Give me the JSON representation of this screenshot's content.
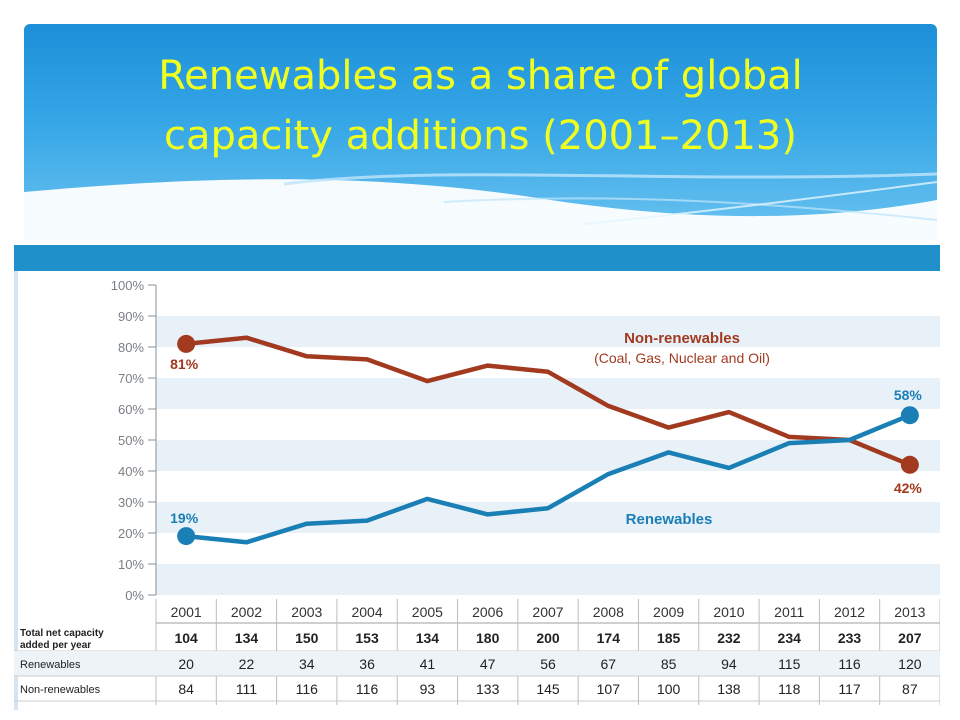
{
  "slide": {
    "title_line1": "Renewables as a share of global",
    "title_line2": "capacity additions (2001–2013)"
  },
  "colors": {
    "title": "#f0ff1e",
    "banner": "#2a9be0",
    "header_band": "#1f90c9",
    "nonrenewables_line": "#a23a1f",
    "renewables_line": "#1a7fb5",
    "band": "#e8f0f8",
    "axis_text": "#7a7f86"
  },
  "chart_data": {
    "type": "line",
    "x": [
      "2001",
      "2002",
      "2003",
      "2004",
      "2005",
      "2006",
      "2007",
      "2008",
      "2009",
      "2010",
      "2011",
      "2012",
      "2013"
    ],
    "ylim": [
      0,
      100
    ],
    "yticks": [
      "0%",
      "10%",
      "20%",
      "30%",
      "40%",
      "50%",
      "60%",
      "70%",
      "80%",
      "90%",
      "100%"
    ],
    "series": [
      {
        "name": "Non-renewables",
        "subtitle": "(Coal, Gas, Nuclear and Oil)",
        "values": [
          81,
          83,
          77,
          76,
          69,
          74,
          72,
          61,
          54,
          59,
          51,
          50,
          42
        ],
        "start_label": "81%",
        "end_label": "42%"
      },
      {
        "name": "Renewables",
        "values": [
          19,
          17,
          23,
          24,
          31,
          26,
          28,
          39,
          46,
          41,
          49,
          50,
          58
        ],
        "start_label": "19%",
        "end_label": "58%"
      }
    ],
    "table": {
      "rows": [
        {
          "label": "Total net capacity added per year",
          "bold": true,
          "values": [
            "104",
            "134",
            "150",
            "153",
            "134",
            "180",
            "200",
            "174",
            "185",
            "232",
            "234",
            "233",
            "207"
          ]
        },
        {
          "label": "Renewables",
          "bold": false,
          "values": [
            "20",
            "22",
            "34",
            "36",
            "41",
            "47",
            "56",
            "67",
            "85",
            "94",
            "115",
            "116",
            "120"
          ]
        },
        {
          "label": "Non-renewables",
          "bold": false,
          "values": [
            "84",
            "111",
            "116",
            "116",
            "93",
            "133",
            "145",
            "107",
            "100",
            "138",
            "118",
            "117",
            "87"
          ]
        }
      ]
    }
  }
}
